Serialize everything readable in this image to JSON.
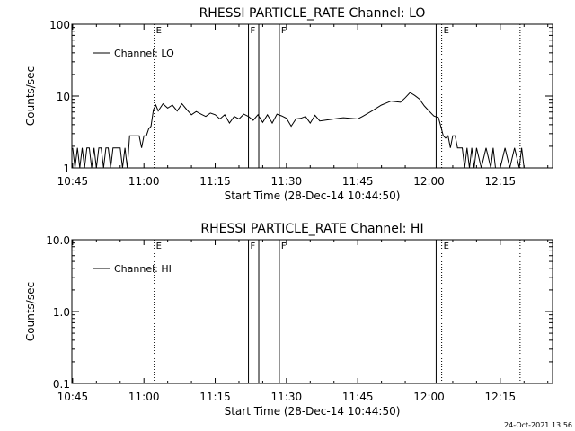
{
  "timestamp": "24-Oct-2021 13:56",
  "chart_data": [
    {
      "type": "line",
      "title": "RHESSI PARTICLE_RATE Channel: LO",
      "xlabel": "Start Time (28-Dec-14 10:44:50)",
      "ylabel": "Counts/sec",
      "yscale": "log",
      "xlim": [
        "10:44:50",
        "12:26:00"
      ],
      "ylim": [
        1,
        100
      ],
      "xticks": [
        "10:45",
        "11:00",
        "11:15",
        "11:30",
        "11:45",
        "12:00",
        "12:15"
      ],
      "yticks": [
        "1",
        "10",
        "100"
      ],
      "legend": "Channel: LO",
      "legend_position": "top-left",
      "markers": [
        {
          "time": "11:02:10",
          "style": "dotted",
          "label": "E"
        },
        {
          "time": "11:22:00",
          "style": "solid",
          "label": "F"
        },
        {
          "time": "11:24:10",
          "style": "solid",
          "label": ""
        },
        {
          "time": "11:28:30",
          "style": "solid",
          "label": "F"
        },
        {
          "time": "12:01:30",
          "style": "solid",
          "label": ""
        },
        {
          "time": "12:02:40",
          "style": "dotted",
          "label": "E"
        },
        {
          "time": "12:19:10",
          "style": "dotted",
          "label": ""
        }
      ],
      "series": [
        {
          "name": "Channel: LO",
          "x": [
            "10:45:00",
            "10:45:30",
            "10:46:00",
            "10:46:30",
            "10:47:00",
            "10:47:30",
            "10:48:00",
            "10:48:30",
            "10:49:00",
            "10:49:30",
            "10:50:00",
            "10:50:30",
            "10:51:00",
            "10:51:30",
            "10:52:00",
            "10:52:30",
            "10:53:00",
            "10:53:30",
            "10:54:00",
            "10:54:30",
            "10:55:00",
            "10:55:30",
            "10:56:00",
            "10:56:30",
            "10:57:00",
            "10:58:00",
            "10:59:00",
            "10:59:30",
            "11:00:00",
            "11:00:30",
            "11:01:00",
            "11:01:30",
            "11:02:00",
            "11:02:30",
            "11:03:00",
            "11:04:00",
            "11:05:00",
            "11:06:00",
            "11:07:00",
            "11:08:00",
            "11:09:00",
            "11:10:00",
            "11:11:00",
            "11:12:00",
            "11:13:00",
            "11:14:00",
            "11:15:00",
            "11:16:00",
            "11:17:00",
            "11:18:00",
            "11:19:00",
            "11:20:00",
            "11:21:00",
            "11:22:00",
            "11:23:00",
            "11:24:00",
            "11:25:00",
            "11:26:00",
            "11:27:00",
            "11:28:00",
            "11:29:00",
            "11:30:00",
            "11:31:00",
            "11:32:00",
            "11:33:00",
            "11:34:00",
            "11:35:00",
            "11:36:00",
            "11:37:00",
            "11:40:00",
            "11:42:00",
            "11:45:00",
            "11:46:00",
            "11:48:00",
            "11:50:00",
            "11:52:00",
            "11:54:00",
            "11:55:00",
            "11:56:00",
            "11:57:00",
            "11:58:00",
            "11:59:00",
            "12:00:00",
            "12:01:00",
            "12:02:00",
            "12:03:00",
            "12:03:30",
            "12:04:00",
            "12:04:30",
            "12:05:00",
            "12:05:30",
            "12:06:00",
            "12:07:00",
            "12:07:30",
            "12:08:00",
            "12:08:30",
            "12:09:00",
            "12:09:30",
            "12:10:00",
            "12:11:00",
            "12:12:00",
            "12:13:00",
            "12:13:30",
            "12:14:00",
            "12:15:00",
            "12:16:00",
            "12:17:00",
            "12:18:00",
            "12:19:00",
            "12:19:30",
            "12:20:00"
          ],
          "y": [
            1.9,
            1,
            1.9,
            1,
            1.9,
            1,
            1.9,
            1.9,
            1,
            1.9,
            1,
            1.9,
            1.9,
            1,
            1.9,
            1.9,
            1,
            1.9,
            1.9,
            1.9,
            1.9,
            1,
            1.9,
            1,
            2.8,
            2.8,
            2.8,
            1.9,
            2.8,
            2.8,
            3.5,
            3.8,
            6.5,
            7.5,
            6.2,
            7.8,
            6.8,
            7.5,
            6.2,
            7.8,
            6.5,
            5.5,
            6.1,
            5.6,
            5.2,
            5.8,
            5.5,
            4.8,
            5.5,
            4.2,
            5.2,
            4.8,
            5.6,
            5.2,
            4.6,
            5.5,
            4.3,
            5.5,
            4.2,
            5.6,
            5.3,
            4.9,
            3.8,
            4.8,
            4.9,
            5.2,
            4.2,
            5.4,
            4.5,
            4.8,
            5.0,
            4.8,
            5.2,
            6.2,
            7.5,
            8.5,
            8.2,
            9.5,
            11.2,
            10.2,
            9.1,
            7.3,
            6.2,
            5.3,
            5.0,
            2.8,
            2.6,
            2.8,
            1.9,
            2.8,
            2.8,
            1.9,
            1.9,
            1,
            1.9,
            1,
            1.9,
            1,
            1.9,
            1,
            1.9,
            1,
            1.9,
            1,
            1,
            1.9,
            1,
            1.9,
            1,
            1.9,
            1
          ]
        }
      ]
    },
    {
      "type": "line",
      "title": "RHESSI PARTICLE_RATE Channel: HI",
      "xlabel": "Start Time (28-Dec-14 10:44:50)",
      "ylabel": "Counts/sec",
      "yscale": "log",
      "xlim": [
        "10:44:50",
        "12:26:00"
      ],
      "ylim": [
        0.1,
        10
      ],
      "xticks": [
        "10:45",
        "11:00",
        "11:15",
        "11:30",
        "11:45",
        "12:00",
        "12:15"
      ],
      "yticks": [
        "0.1",
        "1.0",
        "10.0"
      ],
      "legend": "Channel: HI",
      "legend_position": "top-left",
      "markers": [
        {
          "time": "11:02:10",
          "style": "dotted",
          "label": "E"
        },
        {
          "time": "11:22:00",
          "style": "solid",
          "label": "F"
        },
        {
          "time": "11:24:10",
          "style": "solid",
          "label": ""
        },
        {
          "time": "11:28:30",
          "style": "solid",
          "label": "F"
        },
        {
          "time": "12:01:30",
          "style": "solid",
          "label": ""
        },
        {
          "time": "12:02:40",
          "style": "dotted",
          "label": "E"
        },
        {
          "time": "12:19:10",
          "style": "dotted",
          "label": ""
        }
      ],
      "series": [
        {
          "name": "Channel: HI",
          "x": [],
          "y": []
        }
      ]
    }
  ]
}
